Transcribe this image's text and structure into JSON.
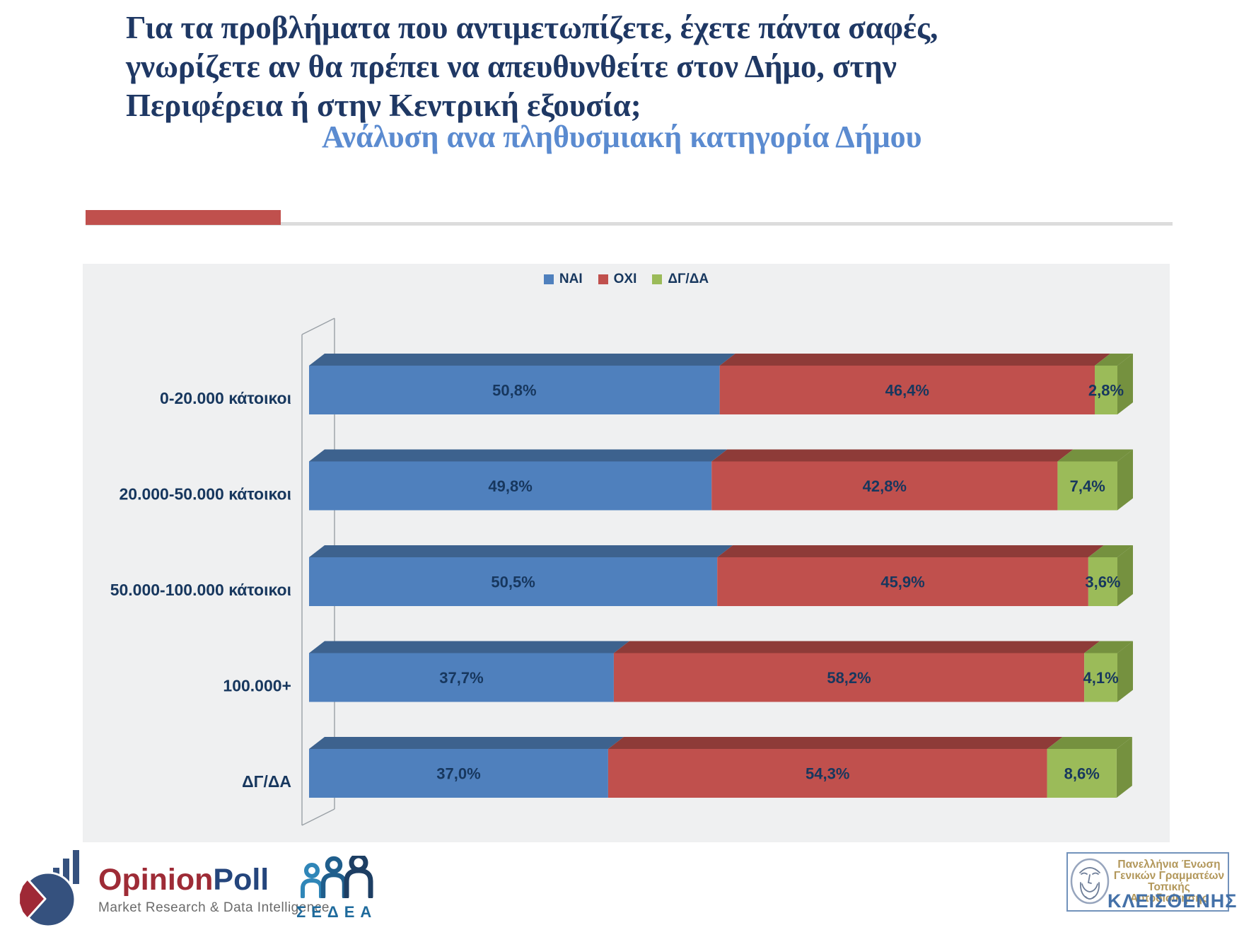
{
  "title": {
    "text": "Για τα προβλήματα που αντιμετωπίζετε, έχετε πάντα σαφές,\nγνωρίζετε αν θα πρέπει να απευθυνθείτε στον Δήμο, στην\nΠεριφέρεια ή στην Κεντρική εξουσία;"
  },
  "subtitle": {
    "text": "Ανάλυση ανα πληθυσμιακή κατηγορία Δήμου"
  },
  "chart_data": {
    "type": "bar",
    "orientation": "horizontal",
    "stacked": true,
    "effect": "3d",
    "unit": "%",
    "xlim": [
      0,
      100
    ],
    "grid": false,
    "legend_position": "top-center",
    "categories": [
      "0-20.000 κάτοικοι",
      "20.000-50.000 κάτοικοι",
      "50.000-100.000 κάτοικοι",
      "100.000+",
      "ΔΓ/ΔΑ"
    ],
    "series": [
      {
        "name": "ΝΑΙ",
        "color": "#4F80BD",
        "dark_color": "#3D628E",
        "values": [
          50.8,
          49.8,
          50.5,
          37.7,
          37.0
        ],
        "labels": [
          "50,8%",
          "49,8%",
          "50,5%",
          "37,7%",
          "37,0%"
        ]
      },
      {
        "name": "ΟΧΙ",
        "color": "#C0504D",
        "dark_color": "#8E3B38",
        "values": [
          46.4,
          42.8,
          45.9,
          58.2,
          54.3
        ],
        "labels": [
          "46,4%",
          "42,8%",
          "45,9%",
          "58,2%",
          "54,3%"
        ]
      },
      {
        "name": "ΔΓ/ΔΑ",
        "color": "#9BBB59",
        "dark_color": "#75913F",
        "values": [
          2.8,
          7.4,
          3.6,
          4.1,
          8.6
        ],
        "labels": [
          "2,8%",
          "7,4%",
          "3,6%",
          "4,1%",
          "8,6%"
        ]
      }
    ],
    "value_label_color": "#17375E"
  },
  "theme": {
    "accent_red": "#C0504D",
    "title_color": "#1F3864",
    "subtitle_color": "#5B8BD0",
    "panel_bg": "#EFF0F1",
    "label_color": "#17375E",
    "op_red": "#9E2B36",
    "op_navy": "#24457C",
    "sedea_blue": "#1E6A9C",
    "kl_gold": "#B2975A",
    "kl_blue": "#4471A8",
    "kl_border": "#7292BB"
  },
  "footer": {
    "opinionpoll": {
      "name_part1": "Opinion",
      "name_part2": "Poll",
      "tagline": "Market Research & Data Intelligence"
    },
    "sedea": {
      "name": "ΣΕΔΕΑ"
    },
    "kleisthenis": {
      "line1": "Πανελλήνια Ένωση",
      "line2": "Γενικών Γραμματέων",
      "line3": "Τοπικής Αυτοδιοίκησης",
      "name": "ΚΛΕΙΣΘΕΝΗΣ"
    }
  }
}
